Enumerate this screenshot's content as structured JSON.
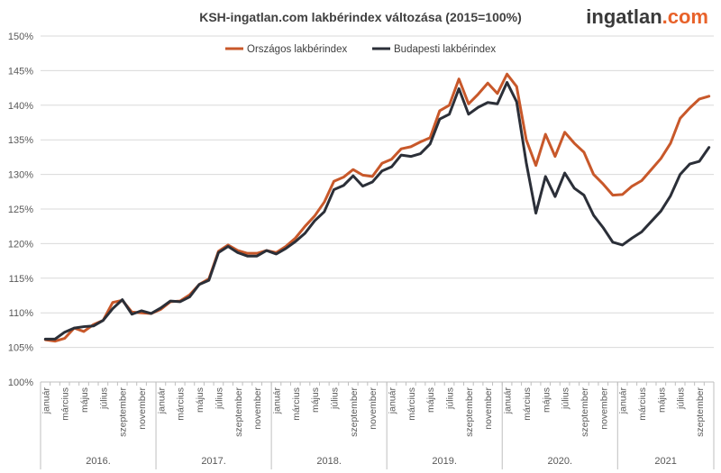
{
  "brand": {
    "part1": "ingatlan",
    "part2": ".com",
    "color1": "#3a3a3a",
    "color2": "#e8622a"
  },
  "chart_data": {
    "type": "line",
    "title": "KSH-ingatlan.com lakbérindex változása (2015=100%)",
    "ylim": [
      100,
      150
    ],
    "yticks": [
      "100%",
      "105%",
      "110%",
      "115%",
      "120%",
      "125%",
      "130%",
      "135%",
      "140%",
      "145%",
      "150%"
    ],
    "grid": true,
    "legend_position": "top",
    "month_labels": [
      "január",
      "március",
      "május",
      "július",
      "szeptember",
      "november"
    ],
    "years": [
      "2016.",
      "2017.",
      "2018.",
      "2019.",
      "2020.",
      "2021"
    ],
    "year_month_counts": [
      12,
      12,
      12,
      12,
      12,
      10
    ],
    "series": [
      {
        "name": "Országos lakbérindex",
        "color": "#c8582a",
        "values": [
          106.1,
          105.9,
          106.3,
          107.8,
          107.3,
          108.3,
          108.9,
          111.5,
          111.8,
          110.1,
          110.0,
          109.9,
          110.5,
          111.6,
          111.7,
          112.6,
          114.1,
          114.9,
          118.9,
          119.8,
          119.0,
          118.6,
          118.6,
          119.0,
          118.7,
          119.6,
          120.8,
          122.5,
          124.0,
          126.0,
          129.0,
          129.6,
          130.7,
          129.9,
          129.7,
          131.6,
          132.2,
          133.7,
          134.0,
          134.7,
          135.3,
          139.2,
          140.0,
          143.8,
          140.2,
          141.6,
          143.2,
          141.7,
          144.5,
          142.7,
          135.0,
          131.3,
          135.8,
          132.6,
          136.1,
          134.5,
          133.2,
          130.0,
          128.6,
          127.0,
          127.1,
          128.3,
          129.1,
          130.7,
          132.3,
          134.5,
          138.1,
          139.6,
          140.9,
          141.3
        ]
      },
      {
        "name": "Budapesti lakbérindex",
        "color": "#2b2f38",
        "values": [
          106.2,
          106.2,
          107.2,
          107.8,
          108.0,
          108.1,
          108.9,
          110.6,
          111.9,
          109.8,
          110.3,
          109.9,
          110.7,
          111.7,
          111.6,
          112.3,
          114.1,
          114.7,
          118.7,
          119.6,
          118.7,
          118.2,
          118.2,
          119.0,
          118.5,
          119.3,
          120.3,
          121.5,
          123.3,
          124.6,
          127.8,
          128.4,
          129.8,
          128.3,
          128.9,
          130.5,
          131.1,
          132.8,
          132.6,
          133.0,
          134.4,
          138.0,
          138.7,
          142.4,
          138.7,
          139.7,
          140.4,
          140.2,
          143.3,
          140.5,
          131.7,
          124.4,
          129.7,
          126.8,
          130.2,
          128.0,
          127.0,
          124.1,
          122.3,
          120.2,
          119.8,
          120.8,
          121.7,
          123.2,
          124.7,
          126.9,
          130.0,
          131.5,
          131.9,
          133.9
        ]
      }
    ]
  }
}
